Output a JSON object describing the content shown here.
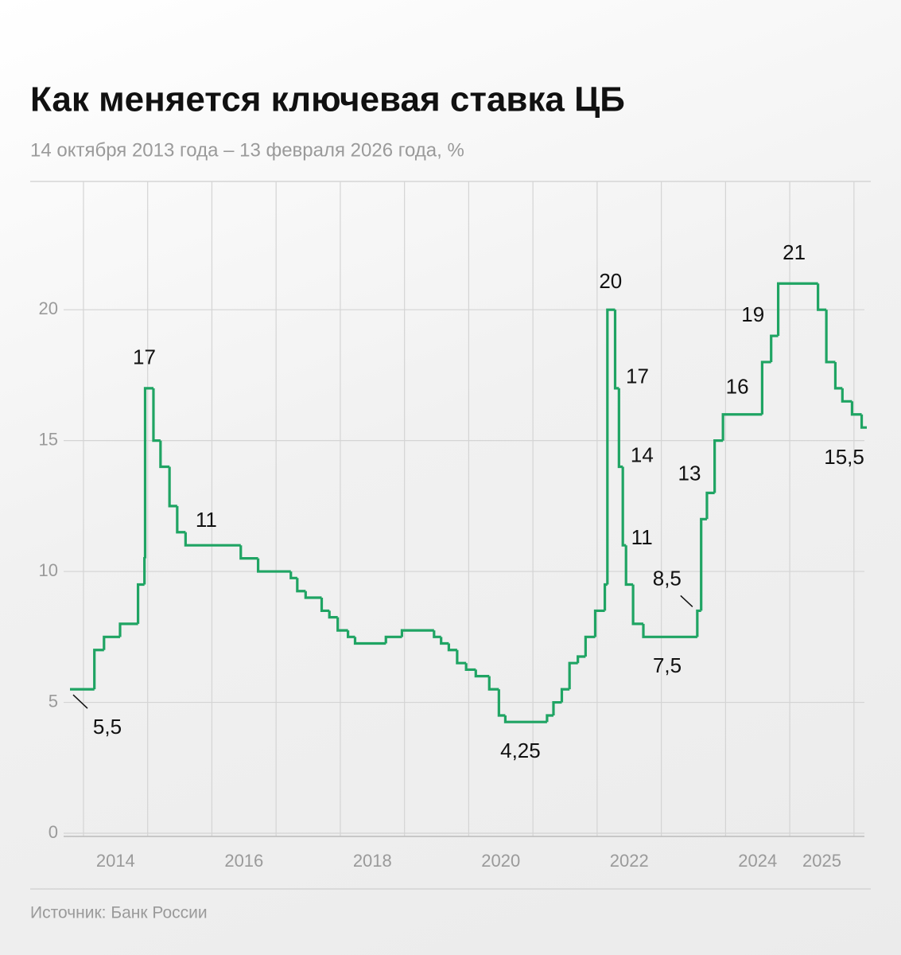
{
  "chart_data": {
    "type": "step",
    "title": "Как меняется ключевая ставка ЦБ",
    "subtitle": "14 октября 2013 года – 13 февраля 2026 года, %",
    "source": "Источник: Банк России",
    "xlim": [
      2013.79,
      2026.2
    ],
    "xgrid": [
      2014,
      2015,
      2016,
      2017,
      2018,
      2019,
      2020,
      2021,
      2022,
      2023,
      2024,
      2025,
      2026
    ],
    "xticks": [
      {
        "value": 2014.5,
        "label": "2014"
      },
      {
        "value": 2016.5,
        "label": "2016"
      },
      {
        "value": 2018.5,
        "label": "2018"
      },
      {
        "value": 2020.5,
        "label": "2020"
      },
      {
        "value": 2022.5,
        "label": "2022"
      },
      {
        "value": 2024.5,
        "label": "2024"
      },
      {
        "value": 2025.5,
        "label": "2025"
      }
    ],
    "ylim": [
      0,
      24.9
    ],
    "yticks": [
      0,
      5,
      10,
      15,
      20
    ],
    "grid": true,
    "x": [
      2013.79,
      2014.17,
      2014.32,
      2014.57,
      2014.85,
      2014.95,
      2014.96,
      2015.09,
      2015.2,
      2015.34,
      2015.46,
      2015.59,
      2016.45,
      2016.72,
      2017.23,
      2017.33,
      2017.46,
      2017.71,
      2017.83,
      2017.96,
      2018.12,
      2018.23,
      2018.71,
      2018.96,
      2019.46,
      2019.57,
      2019.69,
      2019.82,
      2019.96,
      2020.11,
      2020.32,
      2020.47,
      2020.57,
      2021.22,
      2021.32,
      2021.45,
      2021.57,
      2021.7,
      2021.82,
      2021.97,
      2022.12,
      2022.16,
      2022.28,
      2022.34,
      2022.4,
      2022.45,
      2022.56,
      2022.72,
      2023.56,
      2023.62,
      2023.71,
      2023.83,
      2023.96,
      2024.57,
      2024.71,
      2024.82,
      2025.44,
      2025.57,
      2025.71,
      2025.82,
      2025.97,
      2026.12
    ],
    "series": [
      {
        "name": "Ключевая ставка",
        "color": "#1fa463",
        "values": [
          5.5,
          7,
          7.5,
          8,
          9.5,
          10.5,
          17,
          15,
          14,
          12.5,
          11.5,
          11,
          10.5,
          10,
          9.75,
          9.25,
          9,
          8.5,
          8.25,
          7.75,
          7.5,
          7.25,
          7.5,
          7.75,
          7.5,
          7.25,
          7,
          6.5,
          6.25,
          6,
          5.5,
          4.5,
          4.25,
          4.5,
          5,
          5.5,
          6.5,
          6.75,
          7.5,
          8.5,
          9.5,
          20,
          17,
          14,
          11,
          9.5,
          8,
          7.5,
          8.5,
          12,
          13,
          15,
          16,
          18,
          19,
          21,
          20,
          18,
          17,
          16.5,
          16,
          15.5
        ],
        "value_labels": [
          "5,5",
          null,
          null,
          null,
          null,
          null,
          "17",
          null,
          null,
          null,
          null,
          "11",
          null,
          null,
          null,
          null,
          null,
          null,
          null,
          null,
          null,
          null,
          null,
          null,
          null,
          null,
          null,
          null,
          null,
          null,
          null,
          null,
          "4,25",
          null,
          null,
          null,
          null,
          null,
          null,
          null,
          null,
          "20",
          "17",
          "14",
          "11",
          null,
          null,
          "7,5",
          "8,5",
          null,
          "13",
          null,
          "16",
          null,
          "19",
          "21",
          null,
          null,
          null,
          null,
          null,
          "15,5"
        ]
      }
    ]
  }
}
